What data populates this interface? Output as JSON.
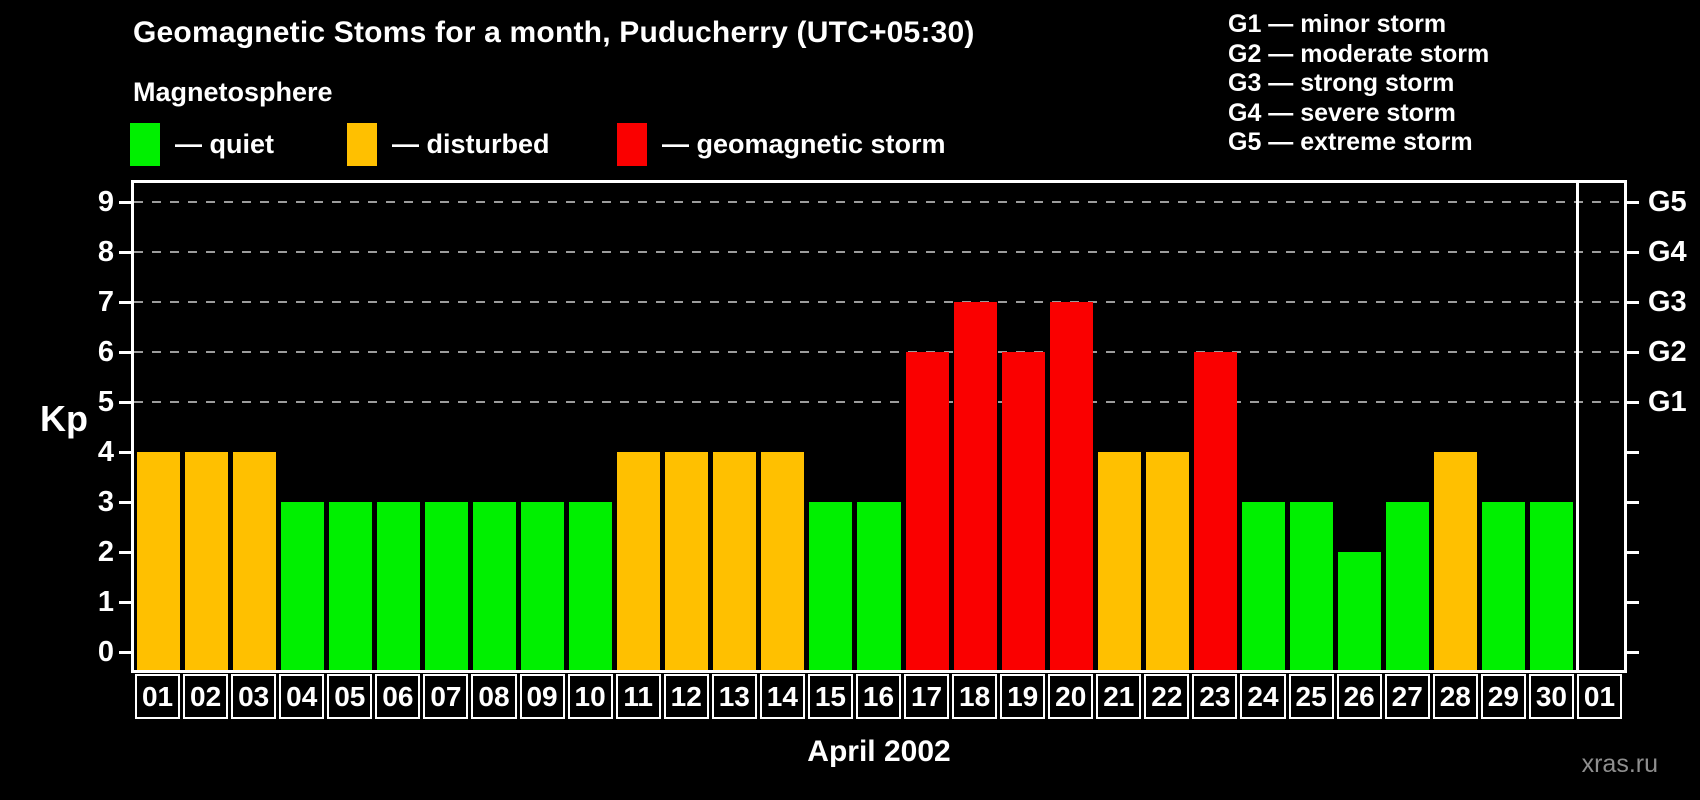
{
  "header": {
    "title": "Geomagnetic Stoms for a month, Puducherry (UTC+05:30)",
    "subtitle": "Magnetosphere"
  },
  "legend": {
    "items": [
      {
        "name": "quiet",
        "label": "— quiet",
        "color": "#00f000"
      },
      {
        "name": "disturbed",
        "label": "— disturbed",
        "color": "#ffc000"
      },
      {
        "name": "storm",
        "label": "— geomagnetic storm",
        "color": "#fa0000"
      }
    ]
  },
  "g_scale_legend": {
    "items": [
      "G1 — minor storm",
      "G2 — moderate storm",
      "G3 — strong storm",
      "G4 — severe storm",
      "G5 — extreme storm"
    ]
  },
  "chart_data": {
    "type": "bar",
    "title": "Geomagnetic Stoms for a month, Puducherry (UTC+05:30)",
    "ylabel": "Kp",
    "xlabel": "April 2002",
    "ylim": [
      0,
      9
    ],
    "yticks": [
      0,
      1,
      2,
      3,
      4,
      5,
      6,
      7,
      8,
      9
    ],
    "right_axis": [
      {
        "label": "G1",
        "kp": 5
      },
      {
        "label": "G2",
        "kp": 6
      },
      {
        "label": "G3",
        "kp": 7
      },
      {
        "label": "G4",
        "kp": 8
      },
      {
        "label": "G5",
        "kp": 9
      }
    ],
    "categories": [
      "01",
      "02",
      "03",
      "04",
      "05",
      "06",
      "07",
      "08",
      "09",
      "10",
      "11",
      "12",
      "13",
      "14",
      "15",
      "16",
      "17",
      "18",
      "19",
      "20",
      "21",
      "22",
      "23",
      "24",
      "25",
      "26",
      "27",
      "28",
      "29",
      "30",
      "01"
    ],
    "values": [
      4,
      4,
      4,
      3,
      3,
      3,
      3,
      3,
      3,
      3,
      4,
      4,
      4,
      4,
      3,
      3,
      6,
      7,
      6,
      7,
      4,
      4,
      6,
      3,
      3,
      2,
      3,
      4,
      3,
      3,
      null
    ],
    "statuses": [
      "disturbed",
      "disturbed",
      "disturbed",
      "quiet",
      "quiet",
      "quiet",
      "quiet",
      "quiet",
      "quiet",
      "quiet",
      "disturbed",
      "disturbed",
      "disturbed",
      "disturbed",
      "quiet",
      "quiet",
      "storm",
      "storm",
      "storm",
      "storm",
      "disturbed",
      "disturbed",
      "storm",
      "quiet",
      "quiet",
      "quiet",
      "quiet",
      "disturbed",
      "quiet",
      "quiet",
      null
    ],
    "colors": {
      "quiet": "#00f000",
      "disturbed": "#ffc000",
      "storm": "#fa0000"
    },
    "gridlines": {
      "dashed_at": [
        5,
        6,
        7,
        8,
        9
      ],
      "color": "#9c9c9c"
    },
    "legend_position": "top"
  },
  "footer": {
    "watermark": "xras.ru"
  }
}
